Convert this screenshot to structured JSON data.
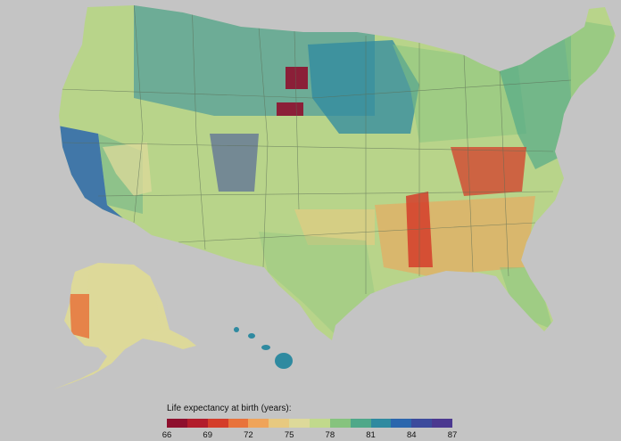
{
  "legend": {
    "title": "Life expectancy at birth (years):",
    "min": 66,
    "max": 87,
    "ticks": [
      "66",
      "69",
      "72",
      "75",
      "78",
      "81",
      "84",
      "87"
    ],
    "colors": [
      "#8e0f2d",
      "#b21c2b",
      "#d43d2a",
      "#e8733b",
      "#efa45a",
      "#e7c980",
      "#ddd99a",
      "#c1d98c",
      "#86c37e",
      "#4fa889",
      "#2f8aa0",
      "#2b66ad",
      "#3c4a9c",
      "#4b3890"
    ]
  },
  "palette": {
    "background": "#c4c4c4",
    "land_base": "#b8d48a",
    "state_border": "#5c6e56"
  },
  "regions": [
    {
      "id": "pacific-coast",
      "value": 83
    },
    {
      "id": "california-interior",
      "value": 80
    },
    {
      "id": "nevada",
      "value": 76
    },
    {
      "id": "colorado-rockies",
      "value": 84
    },
    {
      "id": "northern-plains",
      "value": 81
    },
    {
      "id": "minnesota-iowa",
      "value": 82
    },
    {
      "id": "great-lakes",
      "value": 78
    },
    {
      "id": "northeast",
      "value": 80
    },
    {
      "id": "new-england",
      "value": 79
    },
    {
      "id": "appalachia",
      "value": 70
    },
    {
      "id": "mississippi-delta",
      "value": 70
    },
    {
      "id": "deep-south",
      "value": 73
    },
    {
      "id": "oklahoma",
      "value": 74
    },
    {
      "id": "texas",
      "value": 78
    },
    {
      "id": "florida",
      "value": 79
    },
    {
      "id": "south-dakota-reservations",
      "value": 67
    },
    {
      "id": "alaska",
      "value": 75
    },
    {
      "id": "alaska-west",
      "value": 71
    },
    {
      "id": "hawaii",
      "value": 81
    }
  ]
}
